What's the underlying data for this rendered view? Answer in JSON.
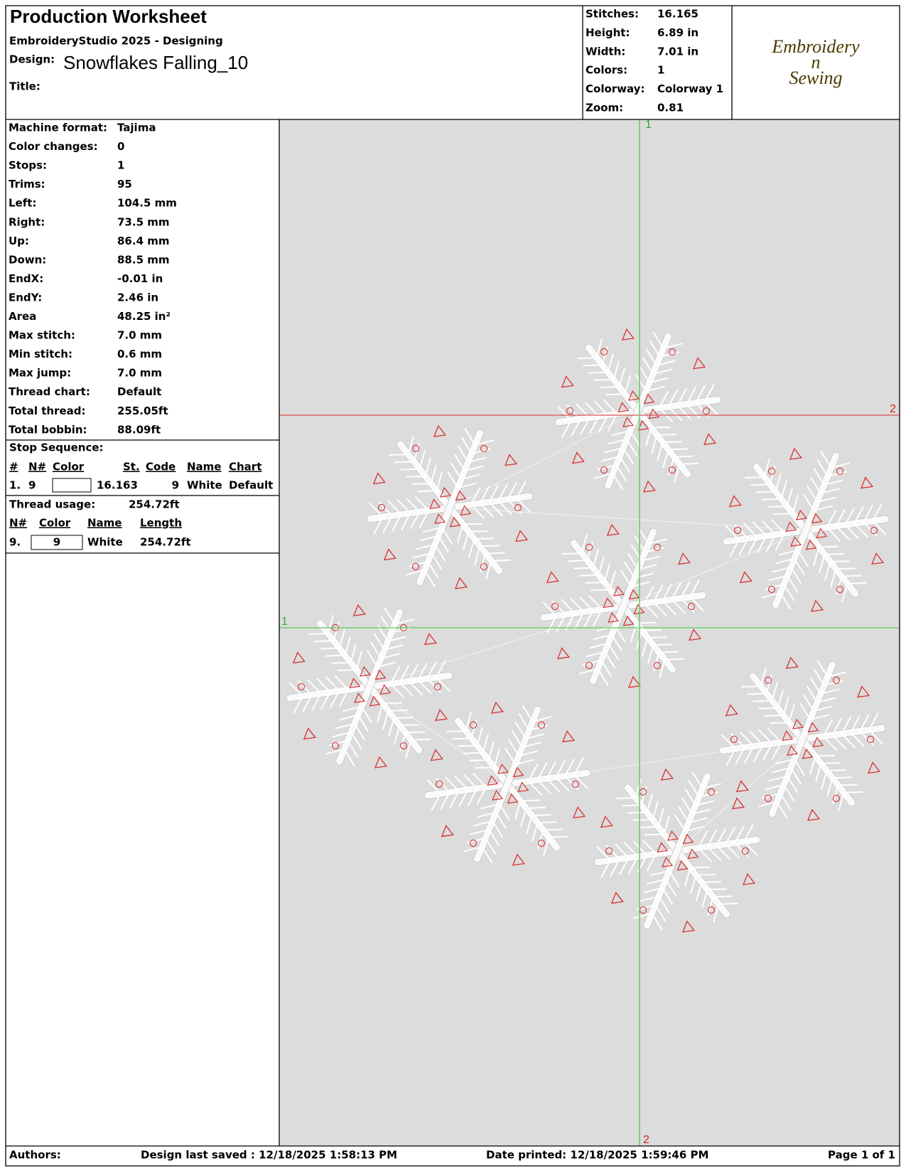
{
  "header": {
    "title": "Production Worksheet",
    "subtitle": "EmbroideryStudio 2025 - Designing",
    "design_label": "Design:",
    "design": "Snowflakes Falling_10",
    "title_label": "Title:"
  },
  "summary": [
    {
      "label": "Stitches:",
      "value": "16.165"
    },
    {
      "label": "Height:",
      "value": "6.89 in"
    },
    {
      "label": "Width:",
      "value": "7.01 in"
    },
    {
      "label": "Colors:",
      "value": "1"
    },
    {
      "label": "Colorway:",
      "value": "Colorway 1"
    },
    {
      "label": "Zoom:",
      "value": "0.81"
    }
  ],
  "logo": {
    "lines": [
      "Embroidery",
      "n",
      "Sewing"
    ]
  },
  "machine": [
    {
      "label": "Machine format:",
      "value": "Tajima"
    },
    {
      "label": "Color changes:",
      "value": "0"
    },
    {
      "label": "Stops:",
      "value": "1"
    },
    {
      "label": "Trims:",
      "value": "95"
    },
    {
      "label": "Left:",
      "value": "104.5 mm"
    },
    {
      "label": "Right:",
      "value": "73.5 mm"
    },
    {
      "label": "Up:",
      "value": "86.4 mm"
    },
    {
      "label": "Down:",
      "value": "88.5 mm"
    },
    {
      "label": "EndX:",
      "value": "-0.01 in"
    },
    {
      "label": "EndY:",
      "value": "2.46 in"
    },
    {
      "label": "Area",
      "value": " 48.25 in²"
    },
    {
      "label": "Max stitch:",
      "value": "7.0 mm"
    },
    {
      "label": "Min stitch:",
      "value": "0.6 mm"
    },
    {
      "label": "Max jump:",
      "value": "7.0 mm"
    },
    {
      "label": "Thread chart:",
      "value": "Default"
    },
    {
      "label": "Total thread:",
      "value": "255.05ft"
    },
    {
      "label": "Total bobbin:",
      "value": "88.09ft"
    }
  ],
  "stop_sequence": {
    "title": "Stop Sequence:",
    "headers": [
      "#",
      "N#",
      "Color",
      "St.",
      "Code",
      "Name",
      "Chart"
    ],
    "rows": [
      {
        "index": "1.",
        "n": "9",
        "stitches": "16.163",
        "code": "9",
        "name": "White",
        "chart": "Default"
      }
    ]
  },
  "thread_usage": {
    "label": "Thread usage:",
    "total": "254.72ft",
    "headers": [
      "N#",
      "Color",
      "Name",
      "Length"
    ],
    "rows": [
      {
        "n": "9.",
        "color": "9",
        "name": "White",
        "length": "254.72ft"
      }
    ]
  },
  "guides": {
    "v_top": "1",
    "v_bottom": "2",
    "h_left": "1",
    "h_right": "2"
  },
  "footer": {
    "authors": "Authors:",
    "saved": "Design last saved : 12/18/2025 1:58:13 PM",
    "printed": "Date printed: 12/18/2025 1:59:46 PM",
    "page": "Page 1 of 1"
  }
}
